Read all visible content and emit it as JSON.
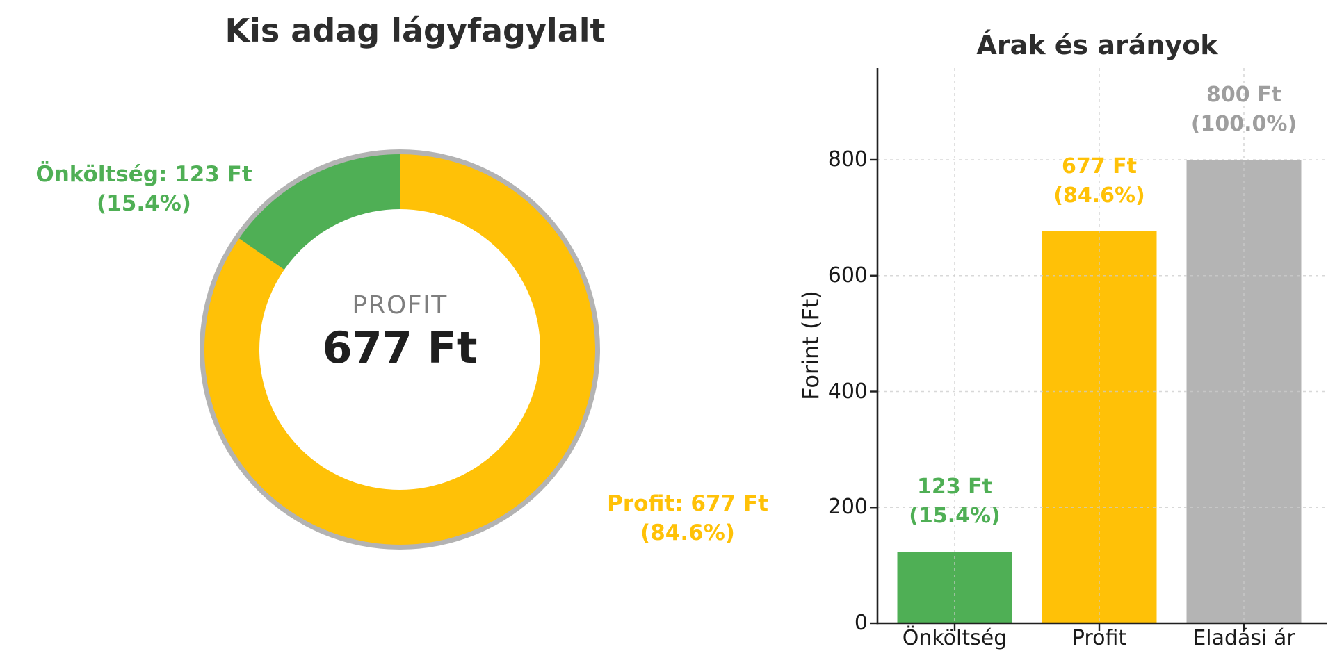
{
  "colors": {
    "green": "#4FAF55",
    "yellow": "#FFC107",
    "gray": "#B4B4B4",
    "gray_label": "#9E9E9E",
    "ring_gray": "#B3B3B3",
    "grid": "#CCCCCC",
    "spine": "#202020",
    "title": "#2D2D2D",
    "dark": "#1F1F1F",
    "muted": "#7E7E7E"
  },
  "chart_data": [
    {
      "type": "pie",
      "subtype": "donut",
      "title": "Kis adag lágyfagylalt",
      "center_label": "PROFIT",
      "center_value": "677 Ft",
      "start_angle": 90,
      "counterclockwise": true,
      "unit": "Ft",
      "slices": [
        {
          "name": "Önköltség",
          "value": 123,
          "percent": "15.4%",
          "color": "green",
          "callout_line1": "Önköltség: 123 Ft",
          "callout_line2": "(15.4%)"
        },
        {
          "name": "Profit",
          "value": 677,
          "percent": "84.6%",
          "color": "yellow",
          "callout_line1": "Profit: 677 Ft",
          "callout_line2": "(84.6%)"
        }
      ]
    },
    {
      "type": "bar",
      "title": "Árak és arányok",
      "ylabel": "Forint (Ft)",
      "categories": [
        "Önköltség",
        "Profit",
        "Eladási ár"
      ],
      "values": [
        123,
        677,
        800
      ],
      "colors": [
        "green",
        "yellow",
        "gray"
      ],
      "bar_labels": [
        [
          "123 Ft",
          "(15.4%)"
        ],
        [
          "677 Ft",
          "(84.6%)"
        ],
        [
          "800 Ft",
          "(100.0%)"
        ]
      ],
      "yticks": [
        "0",
        "200",
        "400",
        "600",
        "800"
      ],
      "ylim": [
        0,
        958
      ],
      "grid": "dashed",
      "legend": "none"
    }
  ]
}
